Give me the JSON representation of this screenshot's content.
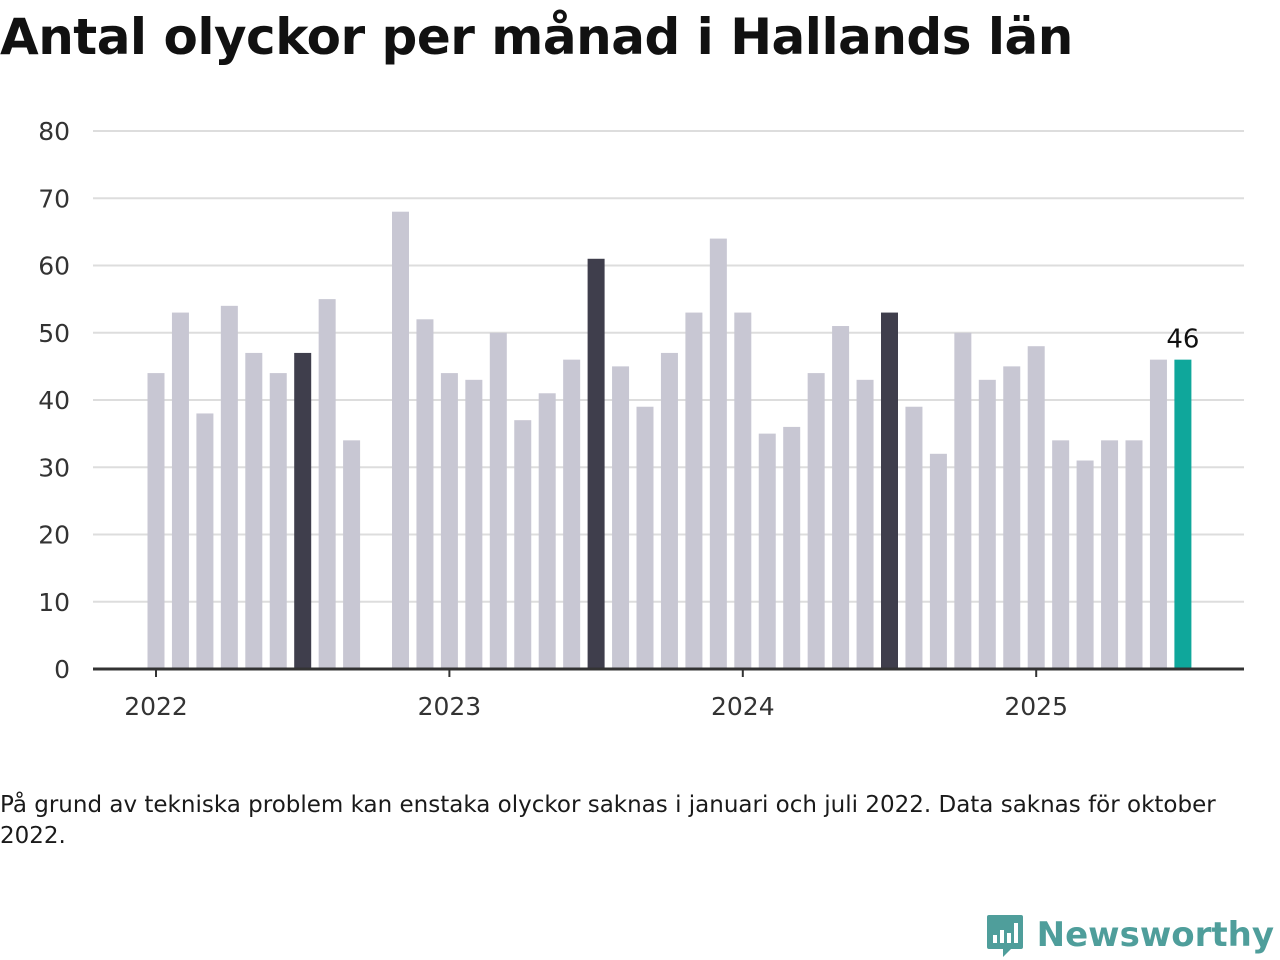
{
  "title": "Antal olyckor per månad i Hallands län",
  "note": "På grund av tekniska problem kan enstaka olyckor saknas i januari och juli 2022. Data saknas för oktober 2022.",
  "brand": {
    "name": "Newsworthy",
    "color": "#4f9e9b",
    "icon": "newsworthy-chart-bubble-icon"
  },
  "colors": {
    "default_bar": "#c8c7d3",
    "july_bar": "#3f3e4c",
    "latest_bar": "#0fa79b",
    "grid": "#dddddd",
    "axis": "#333333"
  },
  "chart_data": {
    "type": "bar",
    "title": "Antal olyckor per månad i Hallands län",
    "xlabel": "",
    "ylabel": "",
    "ylim": [
      0,
      80
    ],
    "yticks": [
      0,
      10,
      20,
      30,
      40,
      50,
      60,
      70,
      80
    ],
    "xticks": [
      "2022",
      "2023",
      "2024",
      "2025"
    ],
    "grid": true,
    "categories": [
      "2022-01",
      "2022-02",
      "2022-03",
      "2022-04",
      "2022-05",
      "2022-06",
      "2022-07",
      "2022-08",
      "2022-09",
      "2022-10",
      "2022-11",
      "2022-12",
      "2023-01",
      "2023-02",
      "2023-03",
      "2023-04",
      "2023-05",
      "2023-06",
      "2023-07",
      "2023-08",
      "2023-09",
      "2023-10",
      "2023-11",
      "2023-12",
      "2024-01",
      "2024-02",
      "2024-03",
      "2024-04",
      "2024-05",
      "2024-06",
      "2024-07",
      "2024-08",
      "2024-09",
      "2024-10",
      "2024-11",
      "2024-12",
      "2025-01",
      "2025-02",
      "2025-03",
      "2025-04",
      "2025-05",
      "2025-06",
      "2025-07"
    ],
    "values": [
      44,
      53,
      38,
      54,
      47,
      44,
      47,
      55,
      34,
      null,
      68,
      52,
      44,
      43,
      50,
      37,
      41,
      46,
      61,
      45,
      39,
      47,
      53,
      64,
      53,
      35,
      36,
      44,
      51,
      43,
      53,
      39,
      32,
      50,
      43,
      45,
      48,
      34,
      31,
      34,
      34,
      46,
      46
    ],
    "highlight": {
      "july": [
        6,
        18,
        30
      ],
      "latest": 42
    },
    "annotations": [
      {
        "index": 42,
        "text": "46"
      }
    ]
  }
}
